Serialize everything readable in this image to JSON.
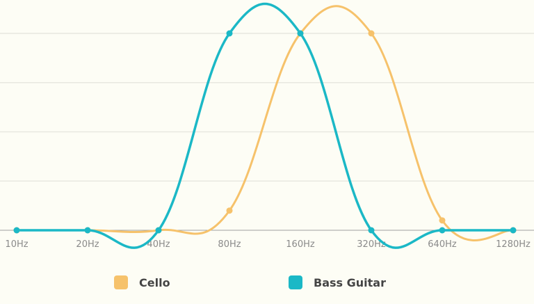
{
  "chart_data": {
    "type": "line",
    "title": "",
    "xlabel": "",
    "ylabel": "",
    "categories": [
      "10Hz",
      "20Hz",
      "40Hz",
      "80Hz",
      "160Hz",
      "320Hz",
      "640Hz",
      "1280Hz"
    ],
    "series": [
      {
        "name": "Cello",
        "color": "#f6c26b",
        "values": [
          0,
          0,
          0,
          0.4,
          4,
          4,
          0.2,
          0
        ]
      },
      {
        "name": "Bass Guitar",
        "color": "#1bb8c6",
        "values": [
          0,
          0,
          0,
          4,
          4,
          0,
          0,
          0
        ]
      }
    ],
    "ylim": [
      0,
      4.4
    ],
    "grid": true,
    "y_ticks_shown": false,
    "legend_position": "bottom",
    "smooth": true
  },
  "legend": {
    "items": [
      {
        "label": "Cello",
        "color": "#f6c26b"
      },
      {
        "label": "Bass Guitar",
        "color": "#1bb8c6"
      }
    ]
  },
  "colors": {
    "background": "#fdfdf5",
    "grid": "#e8e8e0",
    "axis": "#a0a0a0",
    "tick_text": "#8a8a8a"
  }
}
